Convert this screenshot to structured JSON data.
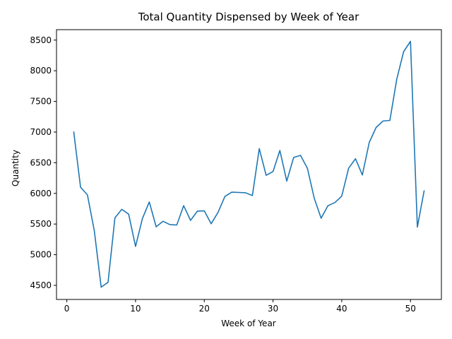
{
  "chart_data": {
    "type": "line",
    "title": "Total Quantity Dispensed by Week of Year",
    "xlabel": "Week of Year",
    "ylabel": "Quantity",
    "xlim": [
      -1.5,
      54.5
    ],
    "ylim": [
      4270,
      8670
    ],
    "xticks": [
      0,
      10,
      20,
      30,
      40,
      50
    ],
    "yticks": [
      4500,
      5000,
      5500,
      6000,
      6500,
      7000,
      7500,
      8000,
      8500
    ],
    "grid": false,
    "legend": "none",
    "series": [
      {
        "color": "#1f77b4",
        "x": [
          1,
          2,
          3,
          4,
          5,
          6,
          7,
          8,
          9,
          10,
          11,
          12,
          13,
          14,
          15,
          16,
          17,
          18,
          19,
          20,
          21,
          22,
          23,
          24,
          25,
          26,
          27,
          28,
          29,
          30,
          31,
          32,
          33,
          34,
          35,
          36,
          37,
          38,
          39,
          40,
          41,
          42,
          43,
          44,
          45,
          46,
          47,
          48,
          49,
          50,
          51,
          52
        ],
        "y": [
          7010,
          6100,
          5975,
          5390,
          4470,
          4550,
          5600,
          5740,
          5660,
          5135,
          5590,
          5860,
          5455,
          5545,
          5490,
          5485,
          5800,
          5560,
          5710,
          5715,
          5505,
          5690,
          5950,
          6020,
          6015,
          6010,
          5965,
          6730,
          6295,
          6355,
          6700,
          6200,
          6585,
          6620,
          6410,
          5920,
          5595,
          5800,
          5850,
          5955,
          6410,
          6565,
          6300,
          6830,
          7075,
          7180,
          7190,
          7860,
          8310,
          8480,
          5450,
          6050
        ]
      }
    ]
  }
}
